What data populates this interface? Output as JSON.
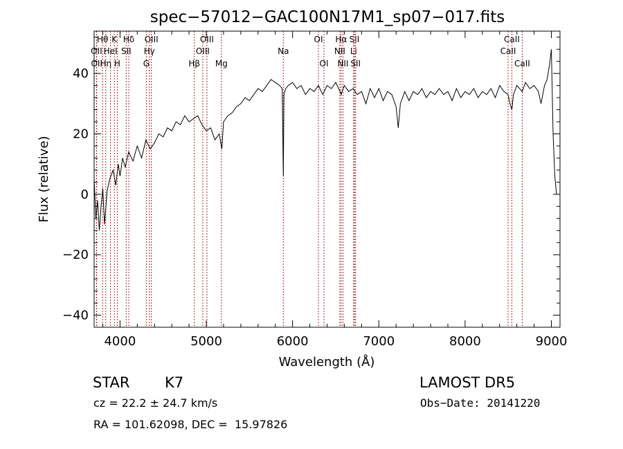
{
  "chart_data": {
    "type": "line",
    "title": "spec−57012−GAC100N17M1_sp07−017.fits",
    "xlabel": "Wavelength (Å)",
    "ylabel": "Flux (relative)",
    "xlim": [
      3700,
      9100
    ],
    "ylim": [
      -44,
      54
    ],
    "x_ticks": [
      4000,
      5000,
      6000,
      7000,
      8000,
      9000
    ],
    "y_ticks": [
      -40,
      -20,
      0,
      20,
      40
    ],
    "x_tick_labels": [
      "4000",
      "5000",
      "6000",
      "7000",
      "8000",
      "9000"
    ],
    "y_tick_labels": [
      "−40",
      "−20",
      "0",
      "20",
      "40"
    ],
    "grid": false,
    "series": [
      {
        "x": [
          3700,
          3720,
          3740,
          3760,
          3780,
          3800,
          3820,
          3850,
          3880,
          3920,
          3950,
          3980,
          4000,
          4030,
          4060,
          4100,
          4150,
          4200,
          4250,
          4300,
          4350,
          4400,
          4450,
          4500,
          4550,
          4600,
          4650,
          4700,
          4750,
          4800,
          4850,
          4900,
          4950,
          5000,
          5050,
          5100,
          5150,
          5180,
          5200,
          5250,
          5300,
          5350,
          5400,
          5450,
          5500,
          5550,
          5600,
          5650,
          5700,
          5750,
          5800,
          5850,
          5880,
          5893,
          5900,
          5920,
          5950,
          6000,
          6050,
          6100,
          6150,
          6200,
          6250,
          6300,
          6350,
          6400,
          6450,
          6500,
          6550,
          6563,
          6600,
          6650,
          6700,
          6750,
          6800,
          6850,
          6900,
          6950,
          7000,
          7050,
          7100,
          7150,
          7200,
          7225,
          7250,
          7300,
          7350,
          7400,
          7450,
          7500,
          7550,
          7600,
          7650,
          7700,
          7750,
          7800,
          7850,
          7900,
          7950,
          8000,
          8050,
          8100,
          8150,
          8200,
          8250,
          8300,
          8350,
          8400,
          8450,
          8498,
          8520,
          8542,
          8560,
          8600,
          8662,
          8700,
          8750,
          8800,
          8850,
          8880,
          8920,
          8950,
          8980,
          9000,
          9020,
          9040,
          9060
        ],
        "y": [
          5,
          -8,
          -2,
          -12,
          -4,
          2,
          -10,
          1,
          5,
          8,
          3,
          10,
          6,
          12,
          9,
          14,
          11,
          16,
          12,
          18,
          15,
          17,
          20,
          19,
          22,
          21,
          24,
          23,
          26,
          24,
          25,
          26,
          23,
          21,
          22,
          18,
          20,
          15,
          24,
          26,
          27,
          29,
          30,
          32,
          31,
          33,
          35,
          34,
          36,
          38,
          37,
          36,
          35,
          6,
          33,
          35,
          36,
          37,
          35,
          36,
          33,
          35,
          34,
          36,
          33,
          36,
          35,
          37,
          34,
          33,
          36,
          34,
          35,
          33,
          34,
          30,
          35,
          32,
          35,
          31,
          34,
          33,
          29,
          22,
          30,
          34,
          31,
          34,
          33,
          35,
          32,
          34,
          33,
          35,
          33,
          34,
          31,
          35,
          32,
          34,
          33,
          35,
          32,
          34,
          33,
          35,
          32,
          36,
          34,
          33,
          30,
          28,
          33,
          36,
          34,
          37,
          35,
          36,
          34,
          30,
          36,
          38,
          43,
          48,
          20,
          6,
          0
        ]
      }
    ],
    "line_markers": [
      {
        "label": "Hθ",
        "wavelength": 3798,
        "row": 1
      },
      {
        "label": "K",
        "wavelength": 3934,
        "row": 1
      },
      {
        "label": "Hδ",
        "wavelength": 4102,
        "row": 1
      },
      {
        "label": "OIII",
        "wavelength": 4363,
        "row": 1
      },
      {
        "label": "OIII",
        "wavelength": 5007,
        "row": 1
      },
      {
        "label": "OI",
        "wavelength": 6300,
        "row": 1
      },
      {
        "label": "Hα",
        "wavelength": 6563,
        "row": 1
      },
      {
        "label": "SII",
        "wavelength": 6717,
        "row": 1
      },
      {
        "label": "CaII",
        "wavelength": 8542,
        "row": 1
      },
      {
        "label": "OII",
        "wavelength": 3727,
        "row": 2
      },
      {
        "label": "HeI",
        "wavelength": 3889,
        "row": 2
      },
      {
        "label": "SII",
        "wavelength": 4072,
        "row": 2
      },
      {
        "label": "Hγ",
        "wavelength": 4340,
        "row": 2
      },
      {
        "label": "OIII",
        "wavelength": 4959,
        "row": 2
      },
      {
        "label": "Na",
        "wavelength": 5893,
        "row": 2
      },
      {
        "label": "NII",
        "wavelength": 6548,
        "row": 2
      },
      {
        "label": "Li",
        "wavelength": 6708,
        "row": 2
      },
      {
        "label": "CaII",
        "wavelength": 8498,
        "row": 2
      },
      {
        "label": "OII",
        "wavelength": 3730,
        "row": 3
      },
      {
        "label": "Hη",
        "wavelength": 3835,
        "row": 3
      },
      {
        "label": "H",
        "wavelength": 3968,
        "row": 3
      },
      {
        "label": "G",
        "wavelength": 4305,
        "row": 3
      },
      {
        "label": "Hβ",
        "wavelength": 4861,
        "row": 3
      },
      {
        "label": "Mg",
        "wavelength": 5175,
        "row": 3
      },
      {
        "label": "OI",
        "wavelength": 6364,
        "row": 3
      },
      {
        "label": "NII",
        "wavelength": 6584,
        "row": 3
      },
      {
        "label": "SII",
        "wavelength": 6731,
        "row": 3
      },
      {
        "label": "CaII",
        "wavelength": 8662,
        "row": 3
      }
    ]
  },
  "info": {
    "class": "STAR",
    "subclass": "K7",
    "survey": "LAMOST DR5",
    "cz": "cz = 22.2 ± 24.7 km/s",
    "obs_date": "Obs−Date: 20141220",
    "coords": "RA = 101.62098, DEC =  15.97826"
  },
  "colors": {
    "spectrum": "#000000",
    "marker_line": "#b22222",
    "axis": "#000000"
  }
}
